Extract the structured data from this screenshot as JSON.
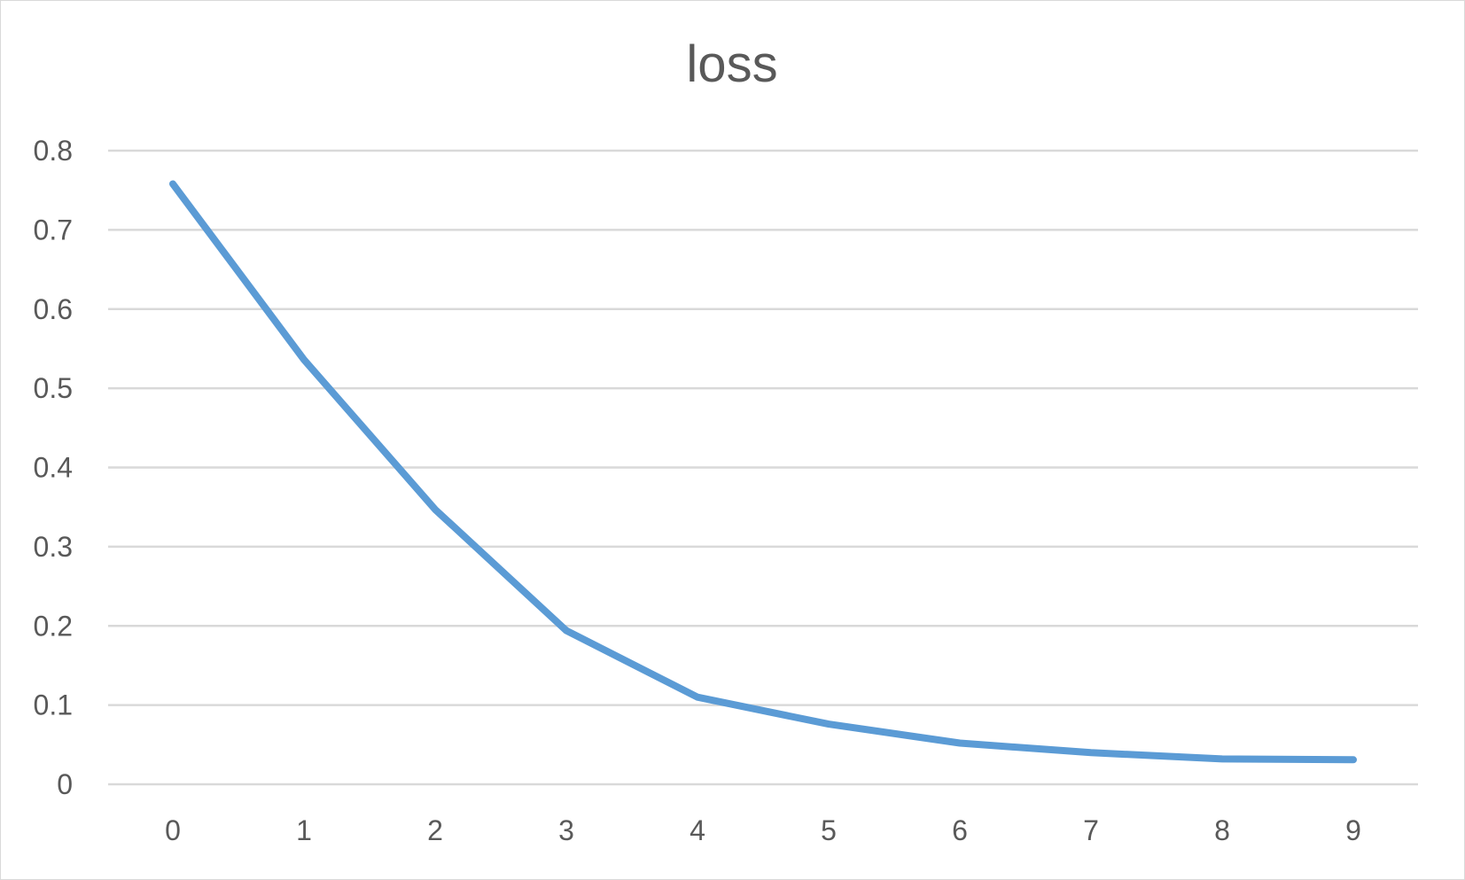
{
  "chart_data": {
    "type": "line",
    "title": "loss",
    "x": [
      0,
      1,
      2,
      3,
      4,
      5,
      6,
      7,
      8,
      9
    ],
    "series": [
      {
        "values": [
          0.758,
          0.536,
          0.347,
          0.194,
          0.11,
          0.076,
          0.052,
          0.04,
          0.032,
          0.031
        ]
      }
    ],
    "xticks": [
      "0",
      "1",
      "2",
      "3",
      "4",
      "5",
      "6",
      "7",
      "8",
      "9"
    ],
    "yticks": [
      "0",
      "0.1",
      "0.2",
      "0.3",
      "0.4",
      "0.5",
      "0.6",
      "0.7",
      "0.8"
    ],
    "ylim": [
      0,
      0.8
    ],
    "grid": true,
    "colors": {
      "line": "#5b9bd5",
      "grid": "#d9d9d9",
      "text": "#595959"
    }
  }
}
